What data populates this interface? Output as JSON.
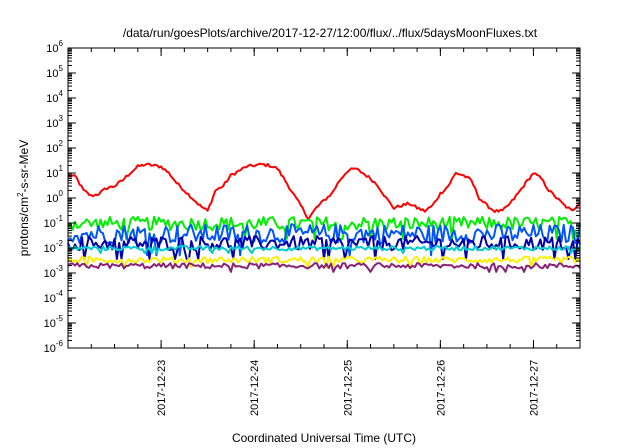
{
  "chart_data": {
    "type": "line",
    "title": "/data/run/goesPlots/archive/2017-12-27/12:00/flux/../flux/5daysMoonFluxes.txt",
    "xlabel": "Coordinated Universal Time (UTC)",
    "ylabel": {
      "pre": "protons/cm",
      "sup": "2",
      "post": "-s-sr-MeV"
    },
    "yscale": "log",
    "ylim": [
      1e-06,
      1000000.0
    ],
    "y_ticks": [
      {
        "exp": "-6"
      },
      {
        "exp": "-5"
      },
      {
        "exp": "-4"
      },
      {
        "exp": "-3"
      },
      {
        "exp": "-2"
      },
      {
        "exp": "-1"
      },
      {
        "exp": "0"
      },
      {
        "exp": "1"
      },
      {
        "exp": "2"
      },
      {
        "exp": "3"
      },
      {
        "exp": "4"
      },
      {
        "exp": "5"
      },
      {
        "exp": "6"
      }
    ],
    "y_tick_base": "10",
    "xlim": [
      "2017-12-22T00:00",
      "2017-12-27T12:00"
    ],
    "x_ticks": [
      "2017-12-23",
      "2017-12-24",
      "2017-12-25",
      "2017-12-26",
      "2017-12-27"
    ],
    "legend": "none",
    "grid": false,
    "series": [
      {
        "color": "#ff0000",
        "x": [
          "2017-12-22T00:00",
          "2017-12-22T02:00",
          "2017-12-22T04:00",
          "2017-12-22T06:00",
          "2017-12-22T08:00",
          "2017-12-22T10:00",
          "2017-12-22T12:00",
          "2017-12-22T14:00",
          "2017-12-22T16:00",
          "2017-12-22T18:00",
          "2017-12-22T20:00",
          "2017-12-22T22:00",
          "2017-12-23T00:00",
          "2017-12-23T02:00",
          "2017-12-23T04:00",
          "2017-12-23T06:00",
          "2017-12-23T08:00",
          "2017-12-23T10:00",
          "2017-12-23T12:00",
          "2017-12-23T14:00",
          "2017-12-23T16:00",
          "2017-12-23T18:00",
          "2017-12-23T20:00",
          "2017-12-23T22:00",
          "2017-12-24T00:00",
          "2017-12-24T02:00",
          "2017-12-24T04:00",
          "2017-12-24T06:00",
          "2017-12-24T08:00",
          "2017-12-24T10:00",
          "2017-12-24T12:00",
          "2017-12-24T14:00",
          "2017-12-24T16:00",
          "2017-12-24T18:00",
          "2017-12-24T20:00",
          "2017-12-24T22:00",
          "2017-12-25T00:00",
          "2017-12-25T02:00",
          "2017-12-25T04:00",
          "2017-12-25T06:00",
          "2017-12-25T08:00",
          "2017-12-25T10:00",
          "2017-12-25T12:00",
          "2017-12-25T14:00",
          "2017-12-25T16:00",
          "2017-12-25T18:00",
          "2017-12-25T20:00",
          "2017-12-25T22:00",
          "2017-12-26T00:00",
          "2017-12-26T02:00",
          "2017-12-26T04:00",
          "2017-12-26T06:00",
          "2017-12-26T08:00",
          "2017-12-26T10:00",
          "2017-12-26T12:00",
          "2017-12-26T14:00",
          "2017-12-26T16:00",
          "2017-12-26T18:00",
          "2017-12-26T20:00",
          "2017-12-26T22:00",
          "2017-12-27T00:00",
          "2017-12-27T02:00",
          "2017-12-27T04:00",
          "2017-12-27T06:00",
          "2017-12-27T08:00",
          "2017-12-27T10:00",
          "2017-12-27T12:00"
        ],
        "y": [
          8,
          7,
          2,
          1.2,
          1.5,
          2.5,
          3,
          5,
          10,
          18,
          22,
          20,
          18,
          10,
          4,
          2,
          1,
          0.5,
          0.3,
          2,
          3,
          8,
          12,
          18,
          20,
          22,
          20,
          15,
          5,
          1.5,
          0.5,
          0.15,
          0.4,
          0.8,
          1.5,
          5,
          12,
          15,
          10,
          6,
          3,
          1,
          0.4,
          0.5,
          0.6,
          0.4,
          0.3,
          0.5,
          1.5,
          3,
          10,
          8,
          5,
          1,
          0.5,
          0.3,
          0.3,
          0.6,
          1.5,
          4,
          10,
          6,
          2,
          1,
          0.5,
          0.3,
          0.7
        ]
      },
      {
        "color": "#00ee00",
        "y_min": 0.05,
        "y_max": 0.18
      },
      {
        "color": "#0055ff",
        "y_min": 0.015,
        "y_max": 0.09
      },
      {
        "color": "#0000aa",
        "y_min": 0.008,
        "y_max": 0.03
      },
      {
        "color": "#00cccc",
        "y_min": 0.008,
        "y_max": 0.012
      },
      {
        "color": "#ffee00",
        "y_min": 0.0025,
        "y_max": 0.0045
      },
      {
        "color": "#882277",
        "y_min": 0.0015,
        "y_max": 0.0025
      }
    ]
  }
}
